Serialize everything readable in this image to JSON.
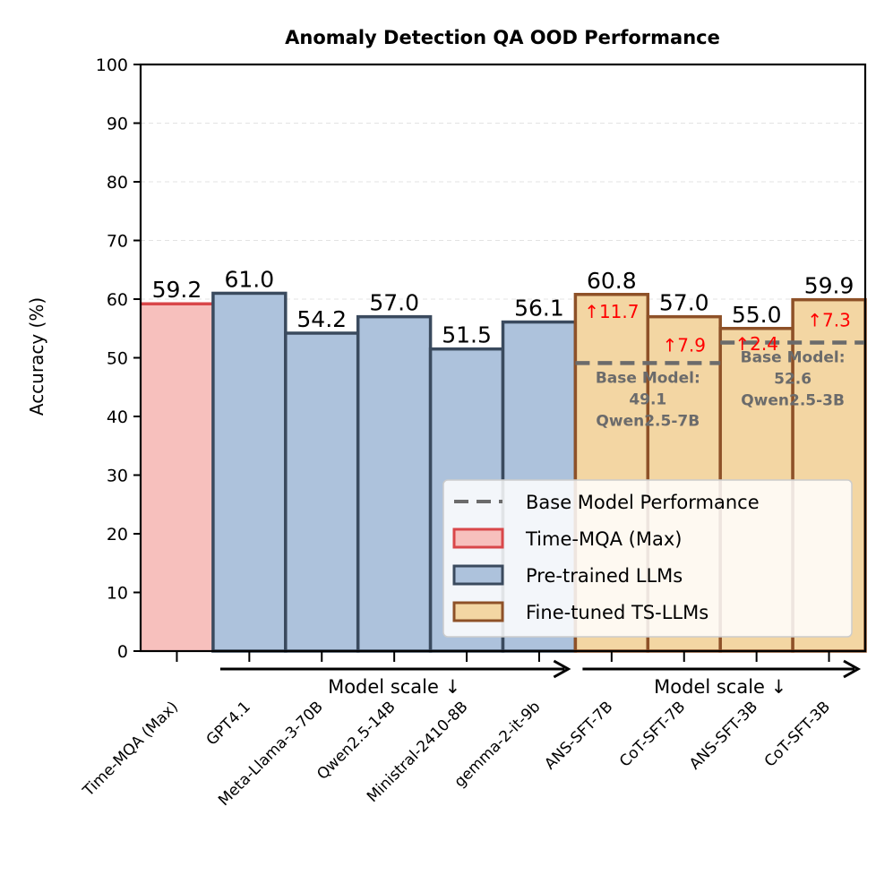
{
  "chart_data": {
    "type": "bar",
    "title": "Anomaly Detection QA OOD Performance",
    "ylabel": "Accuracy (%)",
    "xlabel": "",
    "ylim": [
      0,
      100
    ],
    "yticks": [
      0,
      10,
      20,
      30,
      40,
      50,
      60,
      70,
      80,
      90,
      100
    ],
    "grid": true,
    "categories": [
      "Time-MQA (Max)",
      "GPT4.1",
      "Meta-Llama-3-70B",
      "Qwen2.5-14B",
      "Ministral-2410-8B",
      "gemma-2-it-9b",
      "ANS-SFT-7B",
      "CoT-SFT-7B",
      "ANS-SFT-3B",
      "CoT-SFT-3B"
    ],
    "values": [
      59.2,
      61.0,
      54.2,
      57.0,
      51.5,
      56.1,
      60.8,
      57.0,
      55.0,
      59.9
    ],
    "value_labels": [
      "59.2",
      "61.0",
      "54.2",
      "57.0",
      "51.5",
      "56.1",
      "60.8",
      "57.0",
      "55.0",
      "59.9"
    ],
    "groups": [
      "max",
      "pretrained",
      "pretrained",
      "pretrained",
      "pretrained",
      "pretrained",
      "finetuned",
      "finetuned",
      "finetuned",
      "finetuned"
    ],
    "improvements": [
      null,
      null,
      null,
      null,
      null,
      null,
      "↑11.7",
      "↑7.9",
      "↑2.4",
      "↑7.3"
    ],
    "base_models": [
      {
        "value": 49.1,
        "line1": "Base Model:",
        "line2": "49.1",
        "line3": "Qwen2.5-7B",
        "from_index": 6,
        "to_index": 7
      },
      {
        "value": 52.6,
        "line1": "Base Model:",
        "line2": "52.6",
        "line3": "Qwen2.5-3B",
        "from_index": 8,
        "to_index": 9
      }
    ],
    "scale_arrows": [
      {
        "label": "Model scale  ↓",
        "from_index": 1,
        "to_index": 5
      },
      {
        "label": "Model scale  ↓",
        "from_index": 6,
        "to_index": 9
      }
    ],
    "legend": {
      "position": "lower-right",
      "entries": [
        {
          "label": "Base Model Performance",
          "kind": "dashed"
        },
        {
          "label": "Time-MQA (Max)",
          "kind": "max"
        },
        {
          "label": "Pre-trained LLMs",
          "kind": "pretrained"
        },
        {
          "label": "Fine-tuned TS-LLMs",
          "kind": "finetuned"
        }
      ]
    },
    "colors": {
      "max_fill": "#f7c0bd",
      "max_edge": "#d9474a",
      "pretrained_fill": "#adc2dc",
      "pretrained_edge": "#3a4a5e",
      "finetuned_fill": "#f3d6a3",
      "finetuned_edge": "#8e5128",
      "base_line": "#6b6b6b",
      "improvement_text": "#ff0000",
      "base_text": "#6b6b6b",
      "grid": "#e3e3e3"
    }
  }
}
